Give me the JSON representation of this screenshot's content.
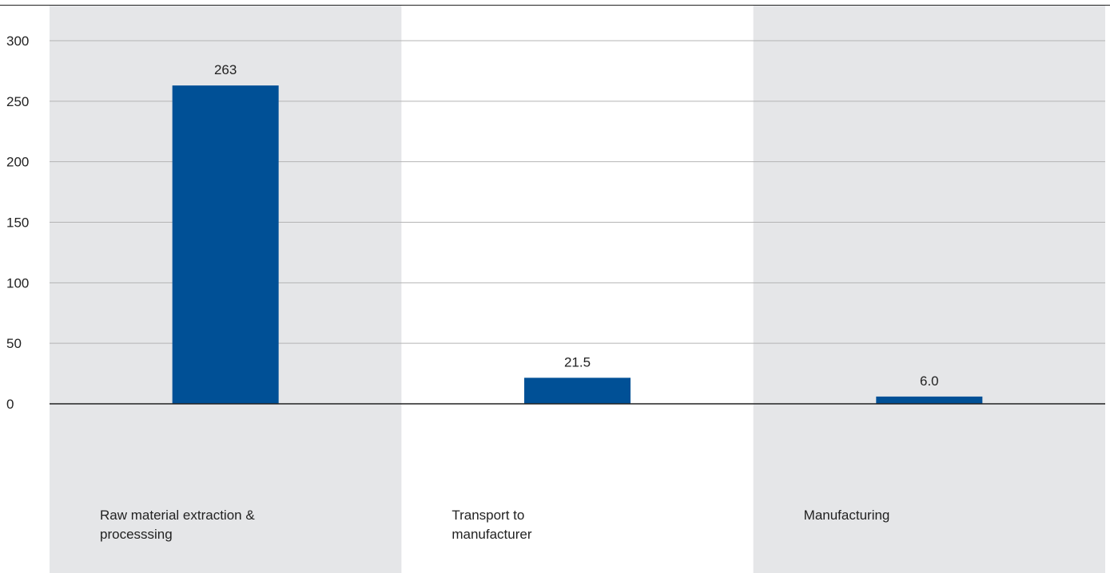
{
  "chart_data": {
    "type": "bar",
    "categories": [
      "Raw material extraction & processsing",
      "Transport to manufacturer",
      "Manufacturing"
    ],
    "category_lines": [
      [
        "Raw material extraction &",
        "processsing"
      ],
      [
        "Transport to",
        "manufacturer"
      ],
      [
        "Manufacturing"
      ]
    ],
    "values": [
      263,
      21.5,
      6.0
    ],
    "value_labels": [
      "263",
      "21.5",
      "6.0"
    ],
    "title": "",
    "xlabel": "",
    "ylabel": "",
    "ylim": [
      0,
      300
    ],
    "yticks": [
      0,
      50,
      100,
      150,
      200,
      250,
      300
    ],
    "grid": true,
    "colors": {
      "bar": "#005096",
      "band": "#e5e6e8",
      "grid": "#b4b4b4",
      "axis": "#222222"
    }
  }
}
